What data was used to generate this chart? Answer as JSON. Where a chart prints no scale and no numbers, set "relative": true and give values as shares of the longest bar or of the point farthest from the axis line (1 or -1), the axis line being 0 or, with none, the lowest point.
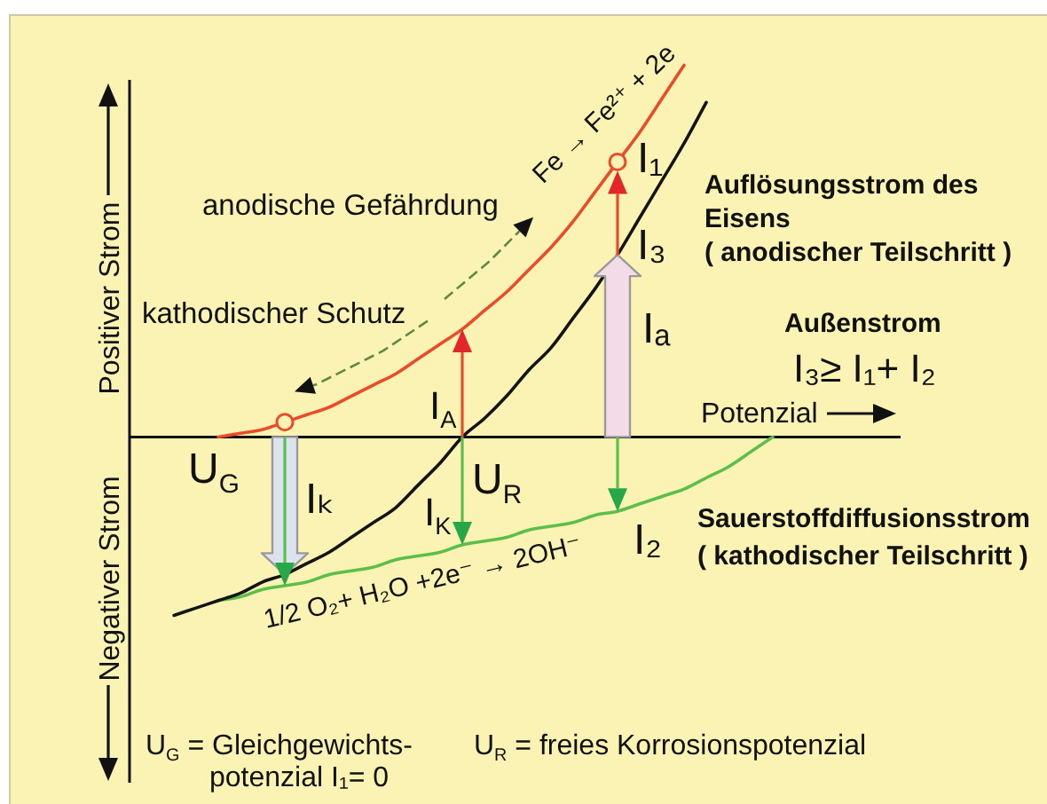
{
  "chart_data": {
    "type": "line",
    "relative": true,
    "xlabel": "Potenzial",
    "ylabel": "Positiver Strom",
    "categories": [
      null,
      null,
      null,
      null,
      null,
      null,
      null,
      null,
      null,
      null,
      null,
      null,
      null,
      null,
      null,
      null,
      null,
      null,
      null,
      null,
      null,
      null,
      null,
      null,
      null,
      null,
      null,
      null
    ],
    "series": [
      {
        "color": "#ea4b2a",
        "values": [
          null,
          null,
          0,
          0.01,
          0.02,
          0.04,
          0.06,
          0.08,
          0.11,
          0.14,
          0.17,
          0.21,
          0.25,
          0.29,
          0.34,
          0.39,
          0.45,
          0.51,
          0.58,
          0.66,
          0.74,
          0.82,
          0.91,
          1,
          null,
          null,
          null,
          null
        ]
      },
      {
        "color": "#141414",
        "values": [
          -0.48,
          -0.46,
          -0.44,
          -0.42,
          -0.39,
          -0.37,
          -0.34,
          -0.31,
          -0.27,
          -0.23,
          -0.19,
          -0.13,
          -0.07,
          0,
          0.05,
          0.11,
          0.18,
          0.24,
          0.32,
          0.4,
          0.49,
          0.59,
          0.69,
          0.79,
          0.9,
          null,
          null,
          null
        ]
      },
      {
        "color": "#5cbf4a",
        "values": [
          null,
          null,
          -0.44,
          -0.43,
          -0.41,
          -0.4,
          -0.39,
          -0.37,
          -0.36,
          -0.35,
          -0.33,
          -0.32,
          -0.31,
          -0.29,
          -0.28,
          -0.27,
          -0.25,
          -0.24,
          -0.23,
          -0.21,
          -0.2,
          -0.18,
          -0.16,
          -0.14,
          -0.11,
          -0.08,
          -0.04,
          0
        ]
      },
      {
        "marker": "circle",
        "color": "#ea4b2a",
        "values": [
          null,
          null,
          null,
          null,
          null,
          0.04,
          null,
          null,
          null,
          null,
          null,
          null,
          null,
          null,
          null,
          null,
          null,
          null,
          null,
          null,
          0.74,
          null,
          null,
          null,
          null,
          null,
          null,
          null
        ]
      }
    ],
    "annotations": [
      "anodische Gefährdung",
      "kathodischer Schutz",
      "Fe → Fe²⁺ + 2e",
      "I₁",
      "I₃",
      "Iₐ",
      "I$_{A}$",
      "I$_{K}$",
      "Iₖ",
      "I₂",
      "U$_{G}$",
      "U$_{R}$",
      "Auflösungsstrom des Eisens",
      "( anodischer Teilschritt )",
      "Außenstrom",
      "I₃≥ I₁+ I₂",
      "Sauerstoffdiffusionsstrom",
      "( kathodischer Teilschritt )",
      "1/2 O₂+ H₂O +2e⁻ → 2OH⁻",
      "Negativer Strom",
      "U$_{G}$ = Gleichgewichts-",
      "potenzial I₁= 0",
      "U$_{R}$ = freies Korrosionspotenzial"
    ]
  }
}
